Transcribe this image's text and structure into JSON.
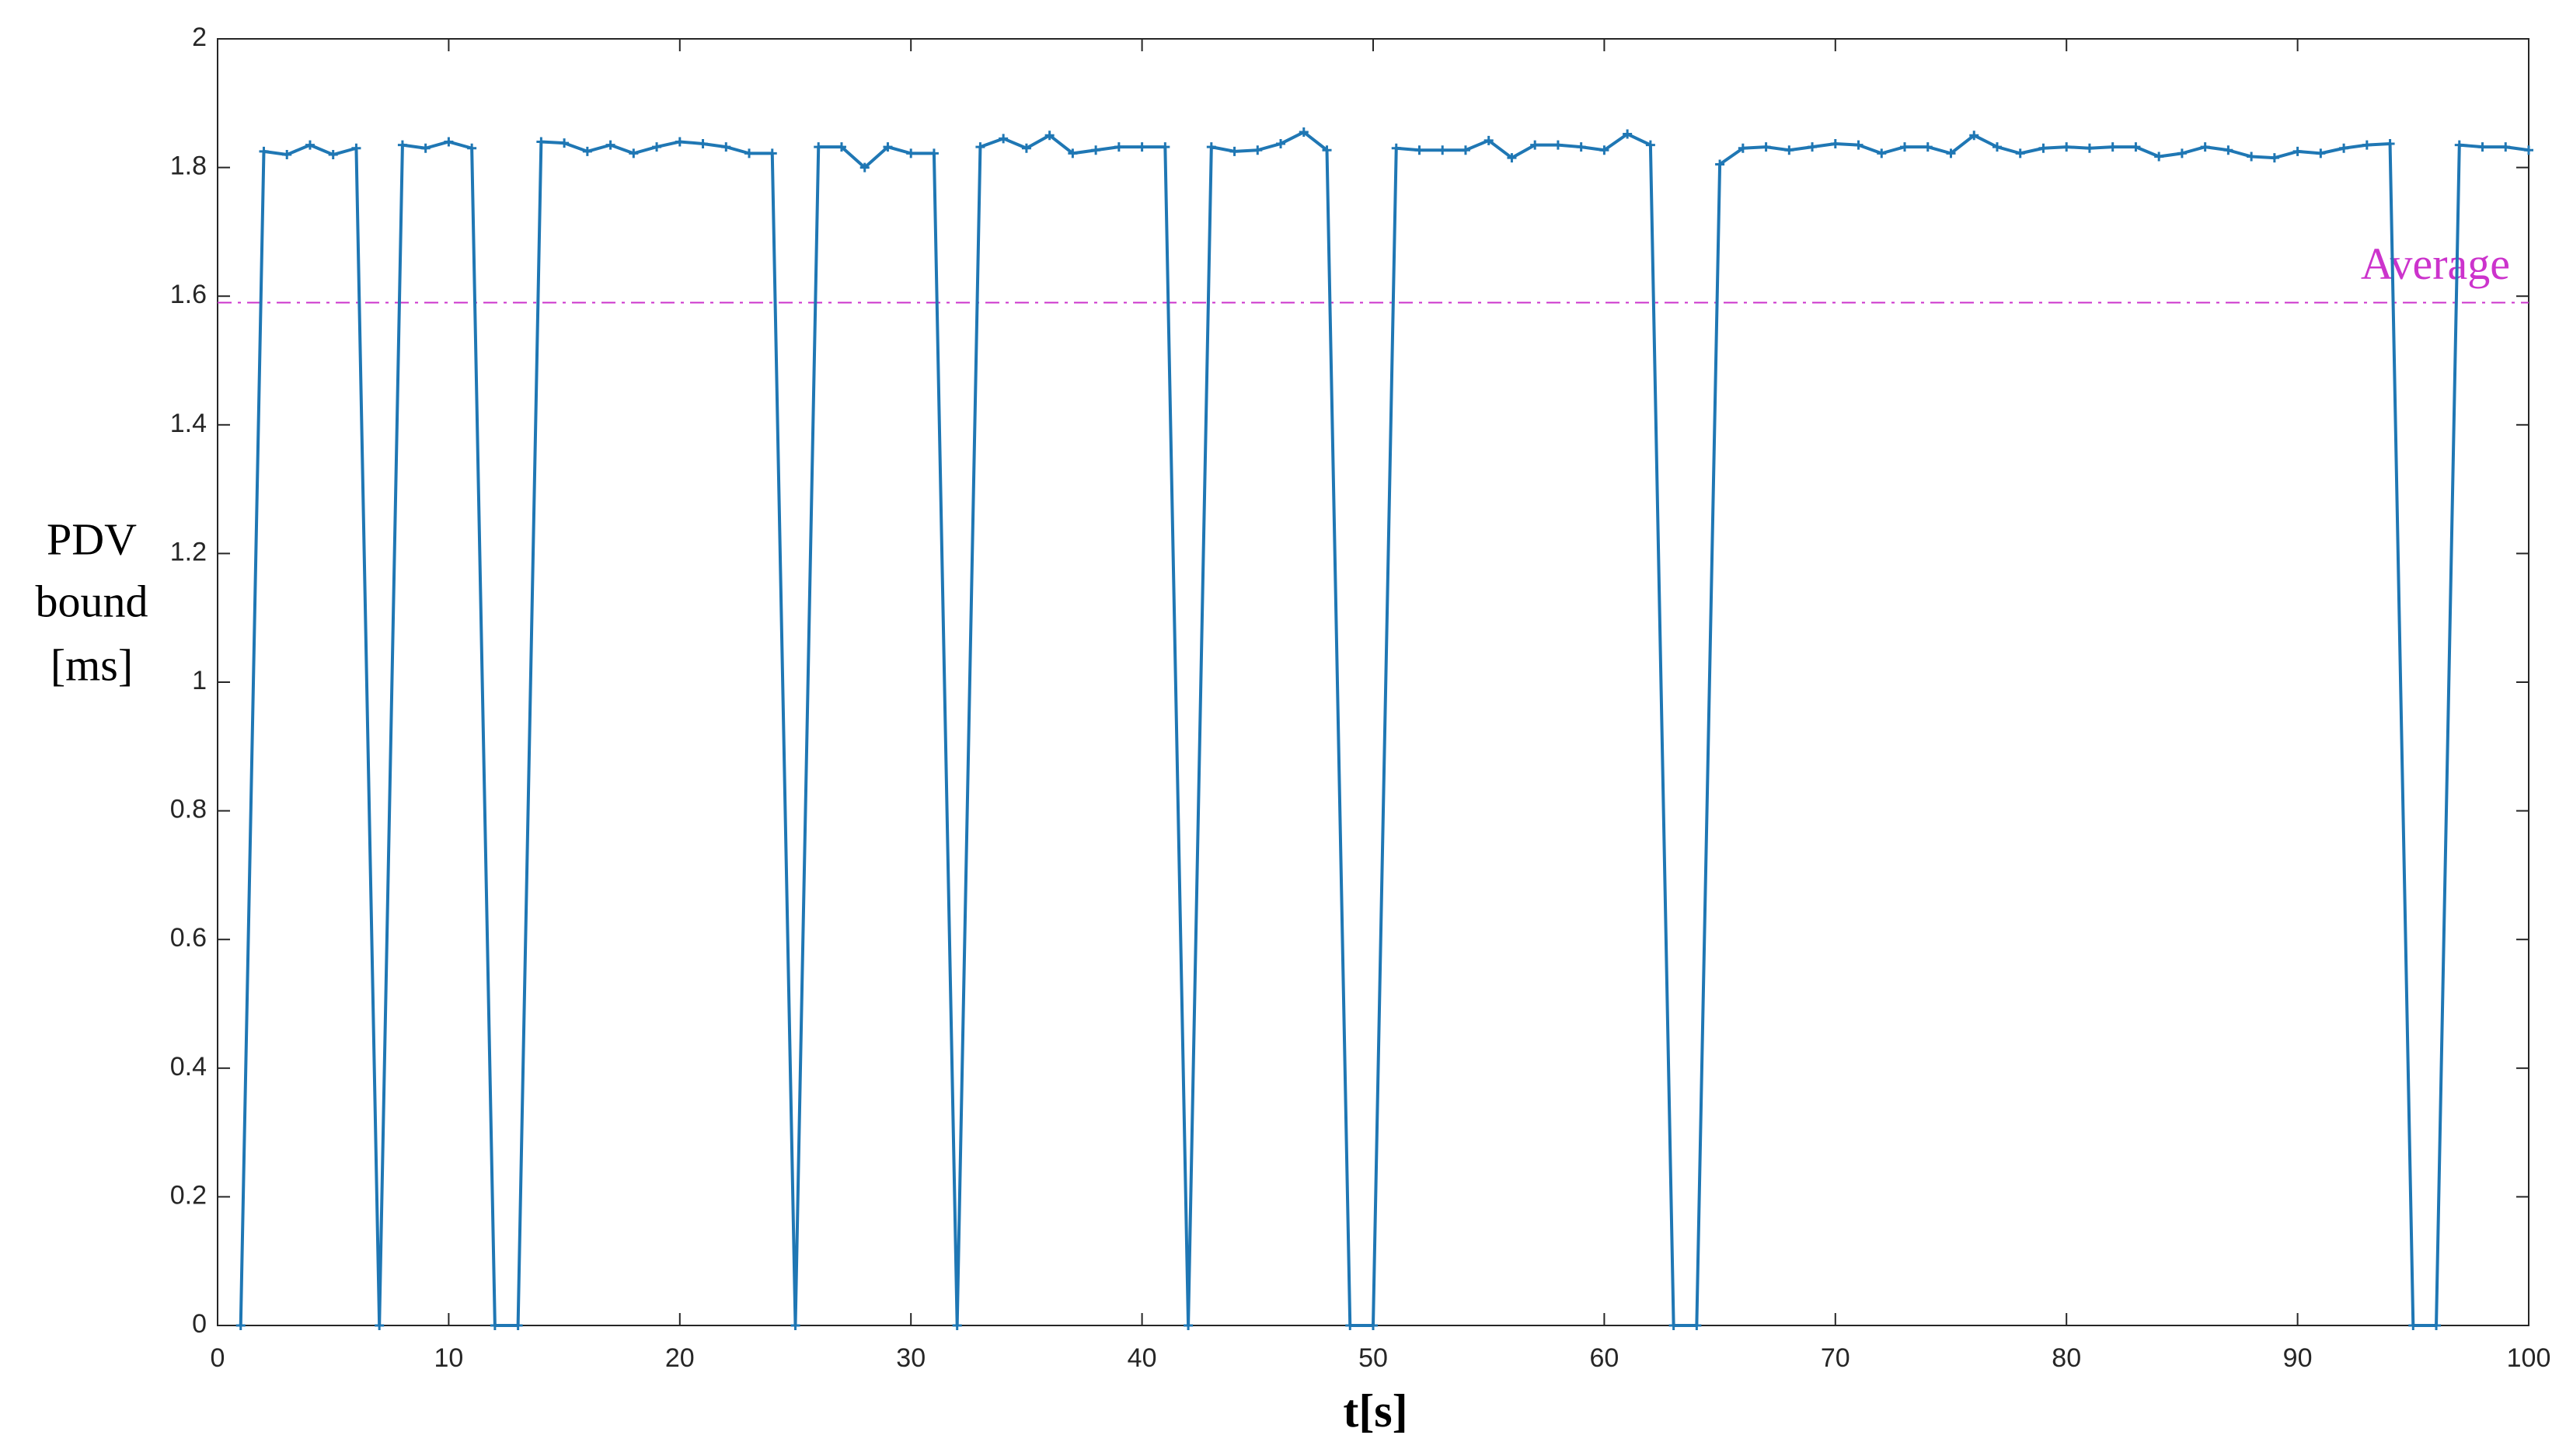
{
  "chart_data": {
    "type": "line",
    "xlabel": "t[s]",
    "ylabel": [
      "PDV",
      "bound",
      "[ms]"
    ],
    "x": [
      1,
      2,
      3,
      4,
      5,
      6,
      7,
      8,
      9,
      10,
      11,
      12,
      13,
      14,
      15,
      16,
      17,
      18,
      19,
      20,
      21,
      22,
      23,
      24,
      25,
      26,
      27,
      28,
      29,
      30,
      31,
      32,
      33,
      34,
      35,
      36,
      37,
      38,
      39,
      40,
      41,
      42,
      43,
      44,
      45,
      46,
      47,
      48,
      49,
      50,
      51,
      52,
      53,
      54,
      55,
      56,
      57,
      58,
      59,
      60,
      61,
      62,
      63,
      64,
      65,
      66,
      67,
      68,
      69,
      70,
      71,
      72,
      73,
      74,
      75,
      76,
      77,
      78,
      79,
      80,
      81,
      82,
      83,
      84,
      85,
      86,
      87,
      88,
      89,
      90,
      91,
      92,
      93,
      94,
      95,
      96,
      97,
      98,
      99,
      100
    ],
    "series": [
      {
        "color": "#1f77b4",
        "values": [
          0,
          1.825,
          1.82,
          1.835,
          1.82,
          1.83,
          0,
          1.835,
          1.83,
          1.84,
          1.83,
          0,
          0,
          1.84,
          1.838,
          1.825,
          1.835,
          1.822,
          1.832,
          1.84,
          1.837,
          1.832,
          1.822,
          1.822,
          0,
          1.832,
          1.832,
          1.8,
          1.832,
          1.822,
          1.822,
          0,
          1.832,
          1.845,
          1.83,
          1.85,
          1.822,
          1.827,
          1.832,
          1.832,
          1.832,
          0,
          1.832,
          1.825,
          1.827,
          1.837,
          1.855,
          1.827,
          0,
          0,
          1.83,
          1.827,
          1.827,
          1.827,
          1.842,
          1.815,
          1.835,
          1.835,
          1.832,
          1.827,
          1.852,
          1.835,
          0,
          0,
          1.805,
          1.83,
          1.832,
          1.827,
          1.832,
          1.837,
          1.835,
          1.822,
          1.832,
          1.832,
          1.822,
          1.85,
          1.832,
          1.822,
          1.83,
          1.832,
          1.83,
          1.832,
          1.832,
          1.817,
          1.822,
          1.832,
          1.827,
          1.817,
          1.815,
          1.825,
          1.822,
          1.83,
          1.835,
          1.837,
          0,
          0,
          1.835,
          1.832,
          1.832,
          1.827
        ]
      }
    ],
    "reference_line": {
      "value": 1.59,
      "label": "Average",
      "color": "#cc33cc"
    },
    "xlim": [
      0,
      100
    ],
    "xticks": [
      0,
      10,
      20,
      30,
      40,
      50,
      60,
      70,
      80,
      90,
      100
    ],
    "ylim": [
      0,
      2
    ],
    "yticks": [
      0,
      0.2,
      0.4,
      0.6,
      0.8,
      1,
      1.2,
      1.4,
      1.6,
      1.8,
      2
    ]
  }
}
